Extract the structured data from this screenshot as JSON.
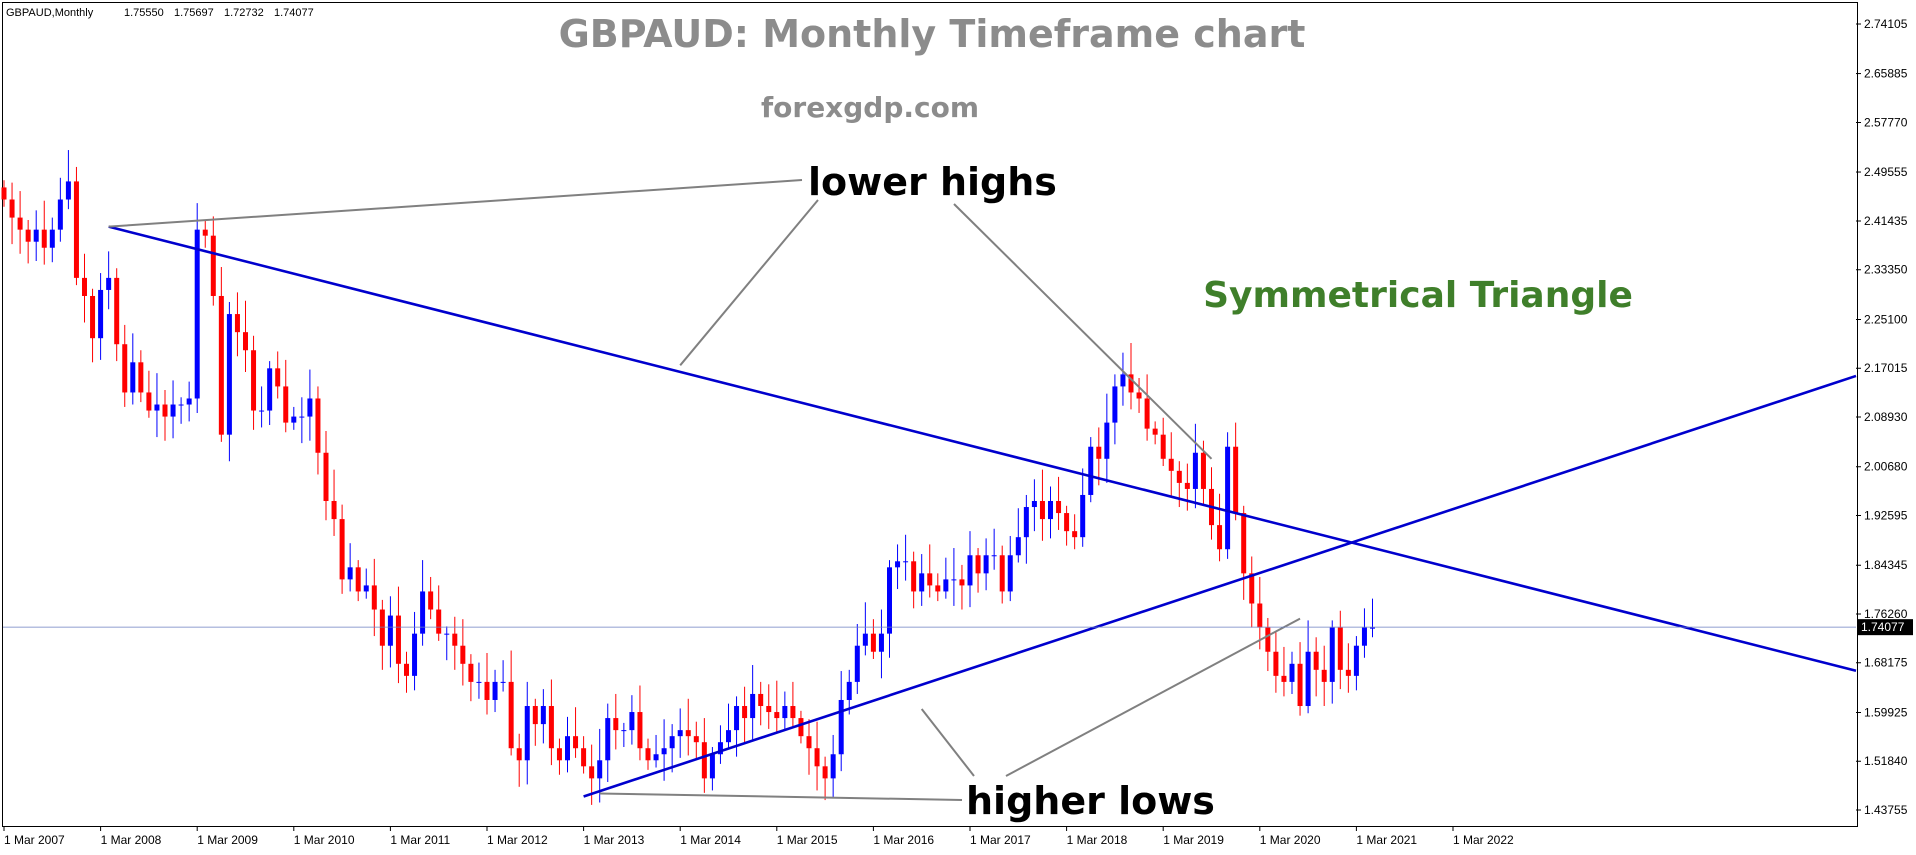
{
  "header": {
    "symbol_info": "GBPAUD,Monthly",
    "ohlc": [
      "1.75550",
      "1.75697",
      "1.72732",
      "1.74077"
    ]
  },
  "titles": {
    "main": "GBPAUD: Monthly Timeframe chart",
    "site": "forexgdp.com",
    "pattern": "Symmetrical Triangle"
  },
  "annotations": {
    "lower_highs": "lower highs",
    "higher_lows": "higher lows"
  },
  "colors": {
    "bull": "#0000ff",
    "bear": "#ff0000",
    "trendline": "#0000cd",
    "pointer": "#808080",
    "pattern_text": "#3f7f2a",
    "current_price_line": "#6b7fc0",
    "axis": "#000000"
  },
  "chart_data": {
    "type": "candlestick",
    "symbol": "GBPAUD",
    "timeframe": "Monthly",
    "current_price": 1.74077,
    "current_price_label": "1.74077",
    "y_ticks": [
      2.74105,
      2.65885,
      2.5777,
      2.49555,
      2.41435,
      2.3335,
      2.251,
      2.17015,
      2.0893,
      2.0068,
      1.92595,
      1.84345,
      1.7626,
      1.68175,
      1.59925,
      1.5184,
      1.43755
    ],
    "y_tick_labels": [
      "2.74105",
      "2.65885",
      "2.57770",
      "2.49555",
      "2.41435",
      "2.33350",
      "2.25100",
      "2.17015",
      "2.08930",
      "2.00680",
      "1.92595",
      "1.84345",
      "1.76260",
      "1.68175",
      "1.59925",
      "1.51840",
      "1.43755"
    ],
    "ylim": [
      1.425,
      2.755
    ],
    "x_ticks": [
      "1 Mar 2007",
      "1 Mar 2008",
      "1 Mar 2009",
      "1 Mar 2010",
      "1 Mar 2011",
      "1 Mar 2012",
      "1 Mar 2013",
      "1 Mar 2014",
      "1 Mar 2015",
      "1 Mar 2016",
      "1 Mar 2017",
      "1 Mar 2018",
      "1 Mar 2019",
      "1 Mar 2020",
      "1 Mar 2021",
      "1 Mar 2022"
    ],
    "candles_start": "Mar 2007",
    "trendlines": [
      {
        "name": "upper",
        "from": {
          "month": 13,
          "price": 2.405
        },
        "to": {
          "month": 186,
          "price": 1.818
        }
      },
      {
        "name": "lower",
        "from": {
          "month": 72,
          "price": 1.46
        },
        "to": {
          "month": 186,
          "price": 1.963
        }
      }
    ],
    "anchors": {
      "lower_high_points": [
        {
          "month": 13,
          "price": 2.405
        },
        {
          "month": 84,
          "price": 2.175
        },
        {
          "month": 150,
          "price": 2.02
        }
      ],
      "higher_low_points": [
        {
          "month": 74,
          "price": 1.465
        },
        {
          "month": 114,
          "price": 1.605
        },
        {
          "month": 161,
          "price": 1.755
        }
      ]
    },
    "closes": [
      2.45,
      2.42,
      2.4,
      2.38,
      2.4,
      2.37,
      2.4,
      2.45,
      2.48,
      2.32,
      2.29,
      2.22,
      2.3,
      2.32,
      2.21,
      2.13,
      2.18,
      2.13,
      2.1,
      2.11,
      2.09,
      2.11,
      2.11,
      2.12,
      2.4,
      2.39,
      2.29,
      2.06,
      2.26,
      2.23,
      2.2,
      2.1,
      2.1,
      2.17,
      2.14,
      2.08,
      2.09,
      2.09,
      2.12,
      2.03,
      1.95,
      1.92,
      1.82,
      1.84,
      1.8,
      1.81,
      1.77,
      1.71,
      1.76,
      1.68,
      1.66,
      1.73,
      1.8,
      1.77,
      1.73,
      1.73,
      1.71,
      1.68,
      1.65,
      1.65,
      1.62,
      1.65,
      1.65,
      1.54,
      1.52,
      1.61,
      1.58,
      1.61,
      1.54,
      1.52,
      1.56,
      1.54,
      1.51,
      1.49,
      1.52,
      1.59,
      1.57,
      1.57,
      1.6,
      1.54,
      1.52,
      1.53,
      1.54,
      1.56,
      1.57,
      1.56,
      1.55,
      1.49,
      1.53,
      1.55,
      1.57,
      1.61,
      1.59,
      1.63,
      1.61,
      1.6,
      1.59,
      1.61,
      1.59,
      1.56,
      1.54,
      1.51,
      1.49,
      1.53,
      1.62,
      1.65,
      1.71,
      1.73,
      1.7,
      1.73,
      1.84,
      1.85,
      1.85,
      1.8,
      1.83,
      1.81,
      1.8,
      1.82,
      1.82,
      1.81,
      1.86,
      1.83,
      1.86,
      1.86,
      1.8,
      1.86,
      1.89,
      1.94,
      1.95,
      1.92,
      1.95,
      1.93,
      1.9,
      1.89,
      1.96,
      2.04,
      2.02,
      2.08,
      2.14,
      2.16,
      2.13,
      2.12,
      2.07,
      2.06,
      2.02,
      2.0,
      1.98,
      1.97,
      2.03,
      1.97,
      1.91,
      1.87,
      2.04,
      1.93,
      1.83,
      1.78,
      1.74,
      1.7,
      1.66,
      1.65,
      1.68,
      1.61,
      1.7,
      1.67,
      1.65,
      1.74,
      1.67,
      1.66,
      1.71,
      1.74,
      1.74
    ]
  }
}
